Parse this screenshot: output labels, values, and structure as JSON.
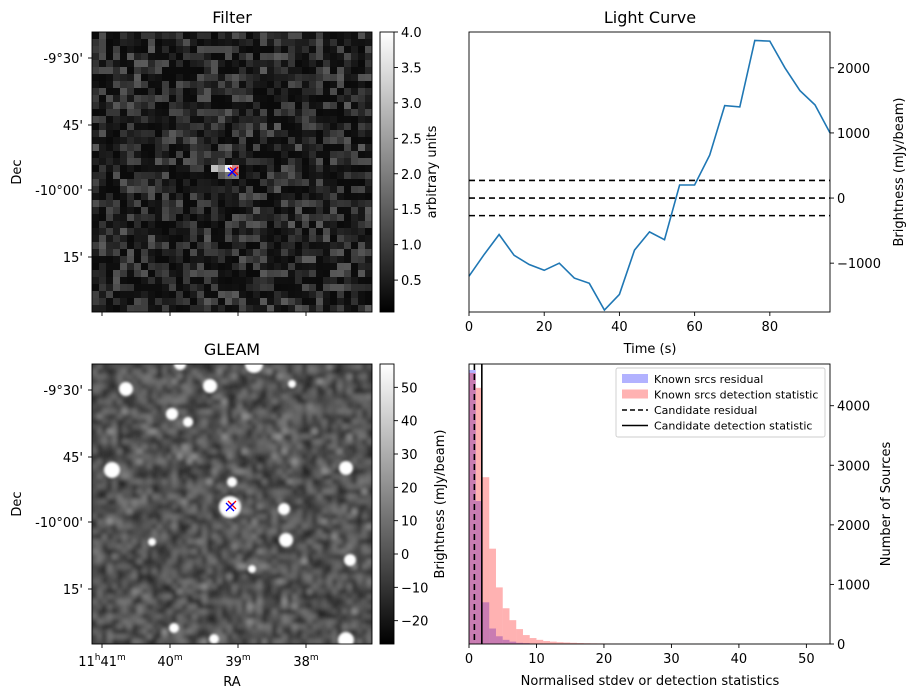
{
  "chart_data": [
    {
      "type": "heatmap",
      "title": "Filter",
      "ylabel": "Dec",
      "ytick_labels": [
        "-9°30'",
        "45'",
        "-10°00'",
        "15'"
      ],
      "colorbar": {
        "label": "arbitrary units",
        "range": [
          0.05,
          4.0
        ],
        "tick_labels": [
          "0.5",
          "1.0",
          "1.5",
          "2.0",
          "2.5",
          "3.0",
          "3.5",
          "4.0"
        ]
      },
      "markers": [
        {
          "symbol": "x",
          "color": "#ff0000"
        },
        {
          "symbol": "x",
          "color": "#0000ff"
        }
      ]
    },
    {
      "type": "line",
      "title": "Light Curve",
      "xlabel": "Time (s)",
      "ylabel": "Brightness (mJy/beam)",
      "xlim": [
        0,
        96
      ],
      "ylim": [
        -1750,
        2550
      ],
      "xtick_labels": [
        "0",
        "20",
        "40",
        "60",
        "80"
      ],
      "ytick_labels": [
        "−1000",
        "0",
        "1000",
        "2000"
      ],
      "x": [
        0,
        4,
        8,
        12,
        16,
        20,
        24,
        28,
        32,
        36,
        40,
        44,
        48,
        52,
        56,
        60,
        64,
        68,
        72,
        76,
        80,
        84,
        88,
        92,
        96
      ],
      "y": [
        -1200,
        -870,
        -560,
        -880,
        -1020,
        -1110,
        -1000,
        -1230,
        -1310,
        -1720,
        -1480,
        -800,
        -520,
        -640,
        200,
        200,
        660,
        1420,
        1400,
        2420,
        2410,
        2000,
        1650,
        1430,
        1000
      ],
      "series_color": "#1f77b4",
      "hlines": [
        {
          "y": 270,
          "style": "dashed"
        },
        {
          "y": 0,
          "style": "dashed"
        },
        {
          "y": -270,
          "style": "dashed"
        }
      ]
    },
    {
      "type": "heatmap",
      "title": "GLEAM",
      "xlabel": "RA",
      "ylabel": "Dec",
      "xtick_labels": [
        {
          "main": "11",
          "sup1": "h",
          "mid": "41",
          "sup2": "m"
        },
        {
          "main": "40",
          "sup2": "m"
        },
        {
          "main": "39",
          "sup2": "m"
        },
        {
          "main": "38",
          "sup2": "m"
        }
      ],
      "ytick_labels": [
        "-9°30'",
        "45'",
        "-10°00'",
        "15'"
      ],
      "colorbar": {
        "label": "Brightness (mJy/beam)",
        "range": [
          -27,
          57
        ],
        "tick_labels": [
          "−20",
          "−10",
          "0",
          "10",
          "20",
          "30",
          "40",
          "50"
        ]
      },
      "markers": [
        {
          "symbol": "x",
          "color": "#ff0000"
        },
        {
          "symbol": "x",
          "color": "#0000ff"
        }
      ]
    },
    {
      "type": "bar",
      "xlabel": "Normalised stdev or detection statistics",
      "ylabel": "Number of Sources",
      "xlim": [
        0,
        53.5
      ],
      "ylim": [
        0,
        4700
      ],
      "xtick_labels": [
        "0",
        "10",
        "20",
        "30",
        "40",
        "50"
      ],
      "ytick_labels": [
        "0",
        "1000",
        "2000",
        "3000",
        "4000"
      ],
      "bin_width": 1.0,
      "series": [
        {
          "name": "Known srcs residual",
          "color": "#0000ff",
          "alpha": 0.3,
          "bin_starts": [
            0,
            1,
            2,
            3,
            4,
            5,
            6,
            7,
            8,
            9,
            10
          ],
          "values": [
            4600,
            2400,
            700,
            260,
            130,
            70,
            40,
            20,
            15,
            8,
            5
          ]
        },
        {
          "name": "Known srcs detection statistic",
          "color": "#ff0000",
          "alpha": 0.3,
          "bin_starts": [
            0,
            1,
            2,
            3,
            4,
            5,
            6,
            7,
            8,
            9,
            10,
            11,
            12,
            13,
            14,
            15,
            16,
            17,
            18,
            19,
            20,
            21,
            22,
            23,
            24,
            25,
            26,
            27,
            28,
            29,
            30,
            31,
            32,
            33,
            34,
            35,
            36,
            37,
            38,
            39,
            40,
            41,
            42,
            43,
            44,
            45,
            46,
            47,
            48,
            49,
            50,
            51,
            52
          ],
          "values": [
            4550,
            4300,
            2800,
            1600,
            950,
            600,
            400,
            250,
            150,
            100,
            70,
            50,
            40,
            30,
            25,
            20,
            16,
            13,
            11,
            10,
            9,
            8,
            7,
            6,
            6,
            5,
            5,
            5,
            4,
            4,
            4,
            3,
            3,
            3,
            3,
            3,
            2,
            2,
            2,
            2,
            2,
            2,
            2,
            2,
            2,
            2,
            1,
            1,
            1,
            1,
            1,
            1,
            1
          ]
        }
      ],
      "vlines": [
        {
          "name": "Candidate residual",
          "x": 0.8,
          "style": "dashed"
        },
        {
          "name": "Candidate detection statistic",
          "x": 1.9,
          "style": "solid"
        }
      ],
      "legend_position": "top-right"
    }
  ]
}
